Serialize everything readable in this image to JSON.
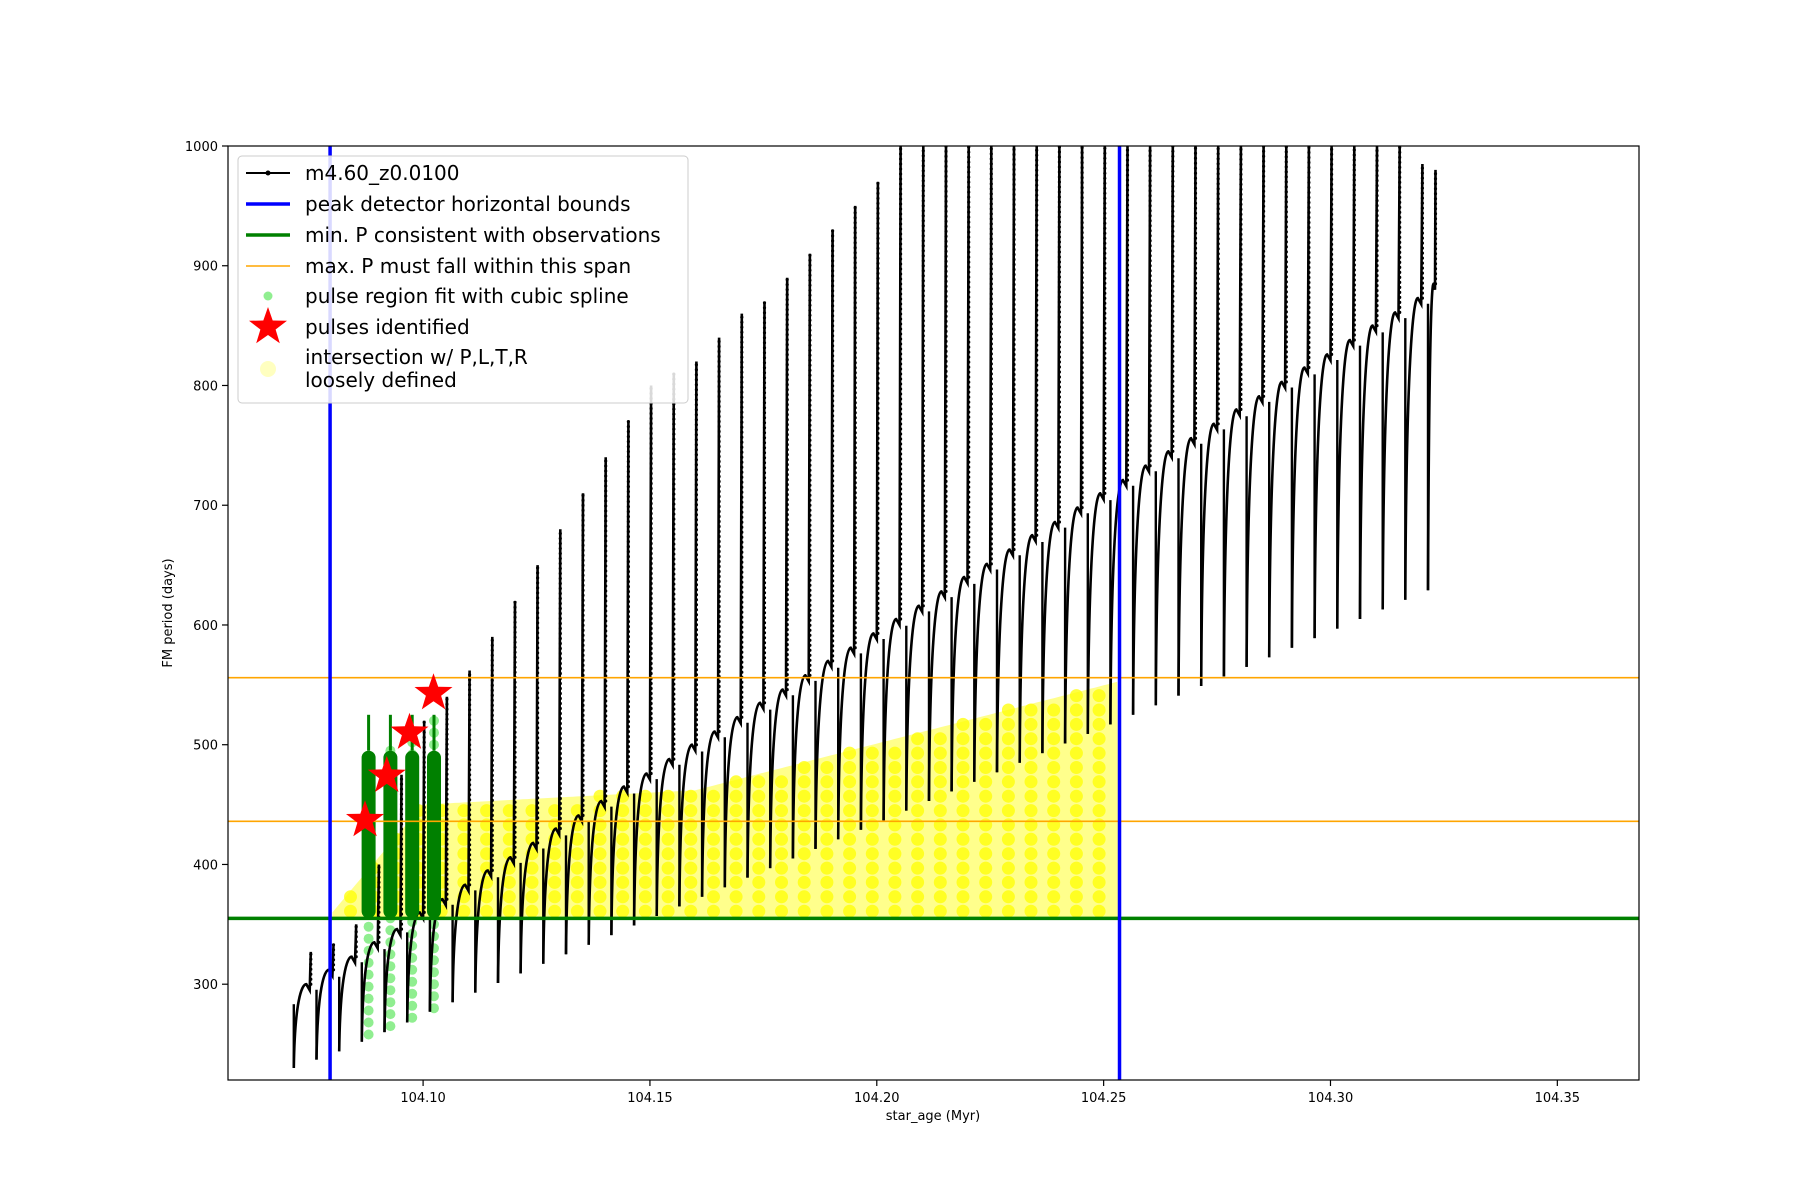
{
  "chart_data": {
    "type": "line",
    "title": "",
    "xlabel": "star_age (Myr)",
    "ylabel": "FM period (days)",
    "xlim": [
      104.057,
      104.368
    ],
    "ylim": [
      220,
      1000
    ],
    "x_ticks": [
      104.1,
      104.15,
      104.2,
      104.25,
      104.3,
      104.35
    ],
    "x_tick_labels": [
      "104.10",
      "104.15",
      "104.20",
      "104.25",
      "104.30",
      "104.35"
    ],
    "y_ticks": [
      300,
      400,
      500,
      600,
      700,
      800,
      900,
      1000
    ],
    "y_tick_labels": [
      "300",
      "400",
      "500",
      "600",
      "700",
      "800",
      "900",
      "1000"
    ],
    "grid": false,
    "legend_position": "top-left",
    "legend": [
      {
        "label": "m4.60_z0.0100",
        "style": "line-marker",
        "color": "#000000"
      },
      {
        "label": "peak detector horizontal bounds",
        "style": "line",
        "color": "#0000ff"
      },
      {
        "label": "min. P consistent with observations",
        "style": "line",
        "color": "#008000"
      },
      {
        "label": "max. P must fall within this span",
        "style": "thin-line",
        "color": "#ffa500"
      },
      {
        "label": "pulse region fit with cubic spline",
        "style": "dot",
        "color": "#90ee90"
      },
      {
        "label": "pulses identified",
        "style": "star",
        "color": "#ff0000"
      },
      {
        "label": "intersection w/ P,L,T,R\nloosely defined",
        "style": "faint-dot",
        "color": "#ffffc0"
      }
    ],
    "series": [
      {
        "name": "m4.60_z0.0100",
        "color": "#000000",
        "kind": "pulse-train",
        "pulses": [
          {
            "x": 104.0715,
            "low": 230,
            "high": 300,
            "peak": 327
          },
          {
            "x": 104.0765,
            "low": 237,
            "high": 312,
            "peak": 333
          },
          {
            "x": 104.0815,
            "low": 244,
            "high": 323,
            "peak": 350
          },
          {
            "x": 104.0865,
            "low": 252,
            "high": 335,
            "peak": 400
          },
          {
            "x": 104.0915,
            "low": 260,
            "high": 346,
            "peak": 475
          },
          {
            "x": 104.0965,
            "low": 268,
            "high": 360,
            "peak": 520
          },
          {
            "x": 104.1015,
            "low": 277,
            "high": 371,
            "peak": 540
          },
          {
            "x": 104.1065,
            "low": 285,
            "high": 383,
            "peak": 562
          },
          {
            "x": 104.1115,
            "low": 293,
            "high": 395,
            "peak": 590
          },
          {
            "x": 104.1165,
            "low": 301,
            "high": 406,
            "peak": 620
          },
          {
            "x": 104.1215,
            "low": 309,
            "high": 418,
            "peak": 650
          },
          {
            "x": 104.1265,
            "low": 317,
            "high": 430,
            "peak": 680
          },
          {
            "x": 104.1315,
            "low": 325,
            "high": 441,
            "peak": 710
          },
          {
            "x": 104.1365,
            "low": 333,
            "high": 453,
            "peak": 740
          },
          {
            "x": 104.1415,
            "low": 341,
            "high": 465,
            "peak": 770
          },
          {
            "x": 104.1465,
            "low": 349,
            "high": 476,
            "peak": 800
          },
          {
            "x": 104.1515,
            "low": 357,
            "high": 488,
            "peak": 810
          },
          {
            "x": 104.1565,
            "low": 365,
            "high": 500,
            "peak": 820
          },
          {
            "x": 104.1615,
            "low": 373,
            "high": 511,
            "peak": 840
          },
          {
            "x": 104.1665,
            "low": 381,
            "high": 523,
            "peak": 860
          },
          {
            "x": 104.1715,
            "low": 389,
            "high": 535,
            "peak": 870
          },
          {
            "x": 104.1765,
            "low": 397,
            "high": 546,
            "peak": 890
          },
          {
            "x": 104.1815,
            "low": 405,
            "high": 558,
            "peak": 910
          },
          {
            "x": 104.1865,
            "low": 413,
            "high": 570,
            "peak": 930
          },
          {
            "x": 104.1915,
            "low": 421,
            "high": 581,
            "peak": 950
          },
          {
            "x": 104.1965,
            "low": 429,
            "high": 593,
            "peak": 970
          },
          {
            "x": 104.2015,
            "low": 437,
            "high": 605,
            "peak": 1000
          },
          {
            "x": 104.2065,
            "low": 445,
            "high": 616,
            "peak": 1000
          },
          {
            "x": 104.2115,
            "low": 453,
            "high": 628,
            "peak": 1000
          },
          {
            "x": 104.2165,
            "low": 461,
            "high": 640,
            "peak": 1000
          },
          {
            "x": 104.2215,
            "low": 469,
            "high": 651,
            "peak": 1000
          },
          {
            "x": 104.2265,
            "low": 477,
            "high": 663,
            "peak": 1000
          },
          {
            "x": 104.2315,
            "low": 485,
            "high": 675,
            "peak": 1000
          },
          {
            "x": 104.2365,
            "low": 493,
            "high": 686,
            "peak": 1000
          },
          {
            "x": 104.2415,
            "low": 501,
            "high": 698,
            "peak": 1000
          },
          {
            "x": 104.2465,
            "low": 509,
            "high": 710,
            "peak": 1000
          },
          {
            "x": 104.2515,
            "low": 517,
            "high": 721,
            "peak": 1000
          },
          {
            "x": 104.2565,
            "low": 525,
            "high": 733,
            "peak": 1000
          },
          {
            "x": 104.2615,
            "low": 533,
            "high": 745,
            "peak": 1000
          },
          {
            "x": 104.2665,
            "low": 541,
            "high": 756,
            "peak": 1000
          },
          {
            "x": 104.2715,
            "low": 549,
            "high": 768,
            "peak": 1000
          },
          {
            "x": 104.2765,
            "low": 557,
            "high": 780,
            "peak": 1000
          },
          {
            "x": 104.2815,
            "low": 565,
            "high": 791,
            "peak": 1000
          },
          {
            "x": 104.2865,
            "low": 573,
            "high": 803,
            "peak": 1000
          },
          {
            "x": 104.2915,
            "low": 581,
            "high": 815,
            "peak": 1000
          },
          {
            "x": 104.2965,
            "low": 589,
            "high": 826,
            "peak": 1000
          },
          {
            "x": 104.3015,
            "low": 597,
            "high": 838,
            "peak": 1000
          },
          {
            "x": 104.3065,
            "low": 605,
            "high": 850,
            "peak": 1000
          },
          {
            "x": 104.3115,
            "low": 613,
            "high": 861,
            "peak": 1000
          },
          {
            "x": 104.3165,
            "low": 621,
            "high": 873,
            "peak": 985
          },
          {
            "x": 104.3215,
            "low": 629,
            "high": 885,
            "peak": 980
          }
        ]
      },
      {
        "name": "peak detector horizontal bounds",
        "color": "#0000ff",
        "kind": "vertical-lines",
        "x": [
          104.0795,
          104.2535
        ]
      },
      {
        "name": "min. P consistent with observations",
        "color": "#008000",
        "kind": "horizontal-line",
        "y": 355
      },
      {
        "name": "max. P must fall within this span",
        "color": "#ffa500",
        "kind": "horizontal-lines",
        "y": [
          436,
          556
        ]
      },
      {
        "name": "pulse region fit with cubic spline",
        "color": "#90ee90",
        "kind": "pulse-columns",
        "columns": [
          {
            "x": 104.088,
            "low": 258,
            "high": 495
          },
          {
            "x": 104.0928,
            "low": 265,
            "high": 500
          },
          {
            "x": 104.0976,
            "low": 272,
            "high": 505
          },
          {
            "x": 104.1024,
            "low": 280,
            "high": 520
          }
        ],
        "fit_region": [
          355,
          495
        ]
      },
      {
        "name": "pulses identified",
        "color": "#ff0000",
        "kind": "stars",
        "points": [
          {
            "x": 104.0872,
            "y": 437
          },
          {
            "x": 104.092,
            "y": 474
          },
          {
            "x": 104.097,
            "y": 510
          },
          {
            "x": 104.1023,
            "y": 543
          }
        ]
      },
      {
        "name": "intersection w/ P,L,T,R loosely defined",
        "color": "#ffff00",
        "kind": "band",
        "x_range": [
          104.08,
          104.2535
        ],
        "lower": 355,
        "upper_at_start": 360,
        "upper_knee": {
          "x": 104.1,
          "y": 450
        },
        "upper_flat_until": 104.16,
        "upper_at_end": 553
      }
    ]
  }
}
